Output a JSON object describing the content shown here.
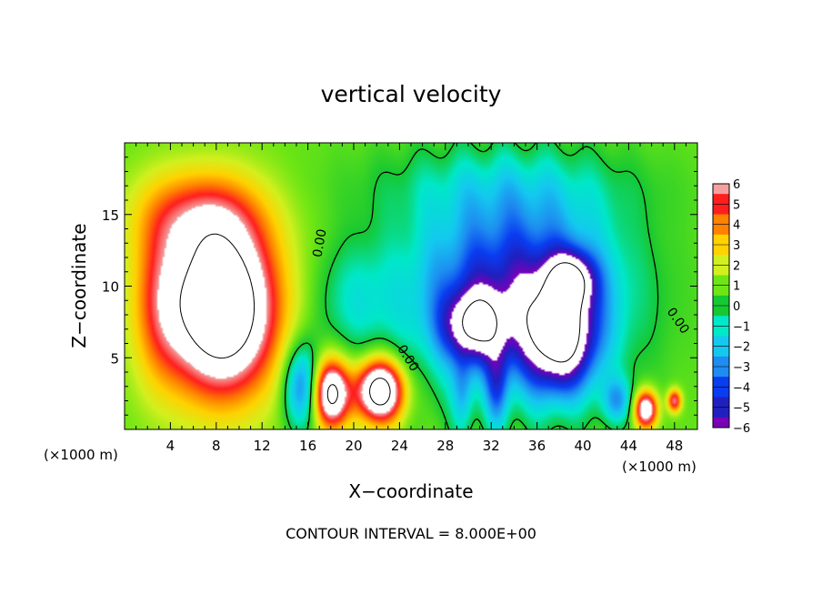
{
  "chart_data": {
    "type": "heatmap",
    "title": "vertical velocity",
    "xlabel": "X−coordinate",
    "ylabel": "Z−coordinate",
    "x_unit": "(×1000 m)",
    "x_unit_right": "(×1000 m)",
    "footer": "CONTOUR INTERVAL = 8.000E+00",
    "xlim": [
      0,
      50
    ],
    "ylim": [
      0,
      20
    ],
    "x_ticks": [
      4,
      8,
      12,
      16,
      20,
      24,
      28,
      32,
      36,
      40,
      44,
      48
    ],
    "x_tick_labels": [
      "4",
      "8",
      "12",
      "16",
      "20",
      "24",
      "28",
      "32",
      "36",
      "40",
      "44",
      "48"
    ],
    "y_ticks": [
      5,
      10,
      15
    ],
    "y_tick_labels": [
      "5",
      "10",
      "15"
    ],
    "colorbar": {
      "levels": [
        -6,
        -5,
        -4,
        -3,
        -2,
        -1,
        0,
        1,
        2,
        3,
        4,
        5,
        6
      ],
      "labels": [
        "6",
        "5",
        "4",
        "3",
        "2",
        "1",
        "0",
        "−1",
        "−2",
        "−3",
        "−4",
        "−5",
        "−6"
      ],
      "colors_low_to_high": [
        "#7a00b8",
        "#2020c0",
        "#0a3cf0",
        "#1e8cf0",
        "#14c8f0",
        "#00e8c8",
        "#16c832",
        "#6ee614",
        "#d2f01e",
        "#ffd200",
        "#ff8200",
        "#ff1e1e",
        "#f5a0a0"
      ],
      "over_color": "#ffffff"
    },
    "contour_labels": [
      "0.00",
      "0.00",
      "0.00"
    ],
    "features": [
      {
        "kind": "updraft",
        "x": 8,
        "z": 8,
        "peak": 6
      },
      {
        "kind": "updraft",
        "x": 18,
        "z": 2.5,
        "peak": 6
      },
      {
        "kind": "updraft",
        "x": 22,
        "z": 2.5,
        "peak": 6
      },
      {
        "kind": "updraft",
        "x": 45.5,
        "z": 1.5,
        "peak": 6
      },
      {
        "kind": "downdraft",
        "x": 37.5,
        "z": 7,
        "peak": -6
      },
      {
        "kind": "downdraft",
        "x": 31,
        "z": 7,
        "peak": -6
      }
    ]
  }
}
